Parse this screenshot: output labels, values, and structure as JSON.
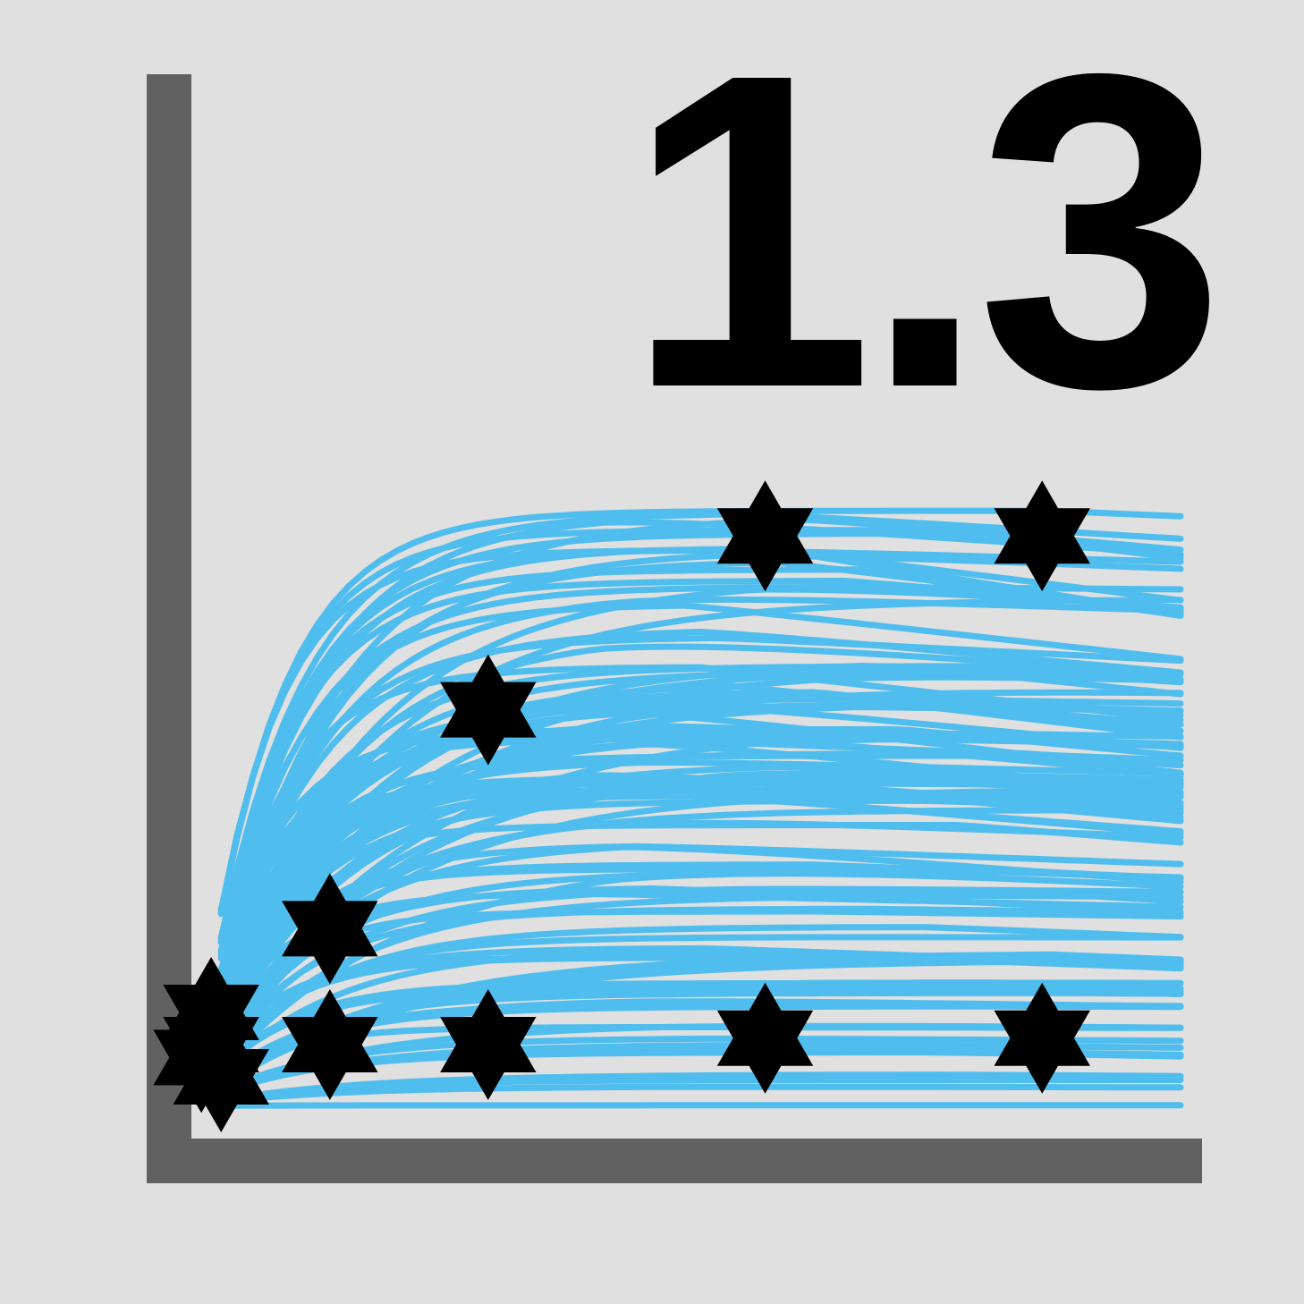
{
  "version_label": "1.3",
  "colors": {
    "background": "#e0e0e0",
    "axis": "#616161",
    "curves": "#4fbdee",
    "markers": "#000000"
  },
  "icons": {
    "marker": "six-pointed-star-icon"
  },
  "chart_data": {
    "type": "line",
    "title": "",
    "xlabel": "",
    "ylabel": "",
    "grid": false,
    "xlim": [
      0,
      1
    ],
    "ylim": [
      0,
      1
    ],
    "markers": [
      {
        "x": 0.02,
        "y": 0.1
      },
      {
        "x": 0.03,
        "y": 0.05
      },
      {
        "x": 0.01,
        "y": 0.08
      },
      {
        "x": 0.02,
        "y": 0.15
      },
      {
        "x": 0.14,
        "y": 0.28
      },
      {
        "x": 0.14,
        "y": 0.1
      },
      {
        "x": 0.3,
        "y": 0.62
      },
      {
        "x": 0.3,
        "y": 0.1
      },
      {
        "x": 0.58,
        "y": 0.89
      },
      {
        "x": 0.58,
        "y": 0.11
      },
      {
        "x": 0.86,
        "y": 0.89
      },
      {
        "x": 0.86,
        "y": 0.11
      }
    ]
  }
}
